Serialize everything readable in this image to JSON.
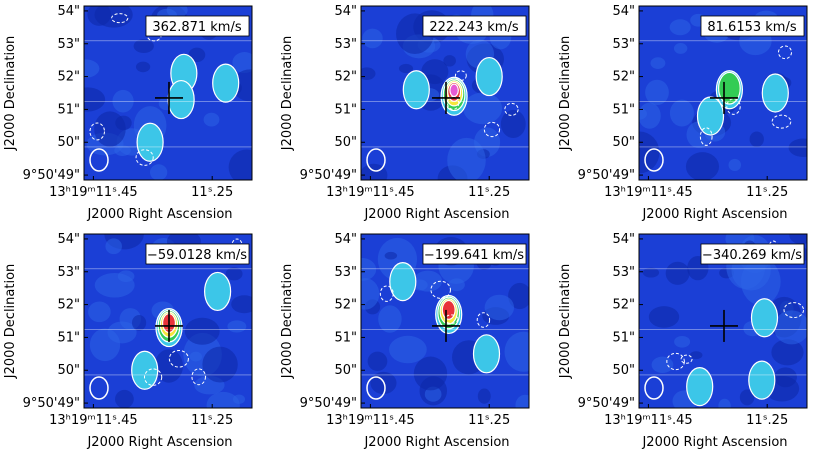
{
  "colors": {
    "background_field": "#1b3fd6",
    "cyan": "#3cc6e8",
    "green": "#33cc55",
    "yellow": "#f5e63c",
    "red": "#e8333a",
    "magenta": "#e65bd4",
    "contour": "#ffffff",
    "marker": "#000000"
  },
  "chart_data": [
    {
      "type": "heatmap",
      "velocity_label": "362.871 km/s",
      "xlabel": "J2000 Right Ascension",
      "ylabel": "J2000 Declination",
      "x_ticks": [
        "13ʰ19ᵐ11ˢ.45",
        "11ˢ.25"
      ],
      "y_ticks": [
        "54\"",
        "53\"",
        "52\"",
        "51\"",
        "50\"",
        "9°50'49\""
      ],
      "peak_level": "low",
      "blobs": [
        {
          "ra_offset": 0.55,
          "dec": 52.1,
          "level": 1
        },
        {
          "ra_offset": 0.45,
          "dec": 51.3,
          "level": 1
        },
        {
          "ra_offset": -0.7,
          "dec": 50.0,
          "level": 1
        },
        {
          "ra_offset": 2.1,
          "dec": 51.8,
          "level": 1
        }
      ]
    },
    {
      "type": "heatmap",
      "velocity_label": "222.243 km/s",
      "xlabel": "J2000 Right Ascension",
      "ylabel": "J2000 Declination",
      "x_ticks": [
        "13ʰ19ᵐ11ˢ.45",
        "11ˢ.25"
      ],
      "y_ticks": [
        "54\"",
        "53\"",
        "52\"",
        "51\"",
        "50\"",
        "9°50'49\""
      ],
      "peak_level": "magenta",
      "blobs": [
        {
          "ra_offset": 0.3,
          "dec": 51.4,
          "level": 5
        },
        {
          "ra_offset": -1.1,
          "dec": 51.6,
          "level": 1
        },
        {
          "ra_offset": 1.6,
          "dec": 52.0,
          "level": 1
        }
      ]
    },
    {
      "type": "heatmap",
      "velocity_label": "81.6153 km/s",
      "xlabel": "J2000 Right Ascension",
      "ylabel": "J2000 Declination",
      "x_ticks": [
        "13ʰ19ᵐ11ˢ.45",
        "11ˢ.25"
      ],
      "y_ticks": [
        "54\"",
        "53\"",
        "52\"",
        "51\"",
        "50\"",
        "9°50'49\""
      ],
      "peak_level": "green",
      "blobs": [
        {
          "ra_offset": 0.2,
          "dec": 51.6,
          "level": 2
        },
        {
          "ra_offset": -0.5,
          "dec": 50.8,
          "level": 1
        },
        {
          "ra_offset": 1.9,
          "dec": 51.5,
          "level": 1
        }
      ]
    },
    {
      "type": "heatmap",
      "velocity_label": "−59.0128 km/s",
      "xlabel": "J2000 Right Ascension",
      "ylabel": "J2000 Declination",
      "x_ticks": [
        "13ʰ19ᵐ11ˢ.45",
        "11ˢ.25"
      ],
      "y_ticks": [
        "54\"",
        "53\"",
        "52\"",
        "51\"",
        "50\"",
        "9°50'49\""
      ],
      "peak_level": "red",
      "blobs": [
        {
          "ra_offset": 0.0,
          "dec": 51.3,
          "level": 4
        },
        {
          "ra_offset": -0.9,
          "dec": 50.0,
          "level": 1
        },
        {
          "ra_offset": 1.8,
          "dec": 52.4,
          "level": 1
        }
      ]
    },
    {
      "type": "heatmap",
      "velocity_label": "−199.641 km/s",
      "xlabel": "J2000 Right Ascension",
      "ylabel": "J2000 Declination",
      "x_ticks": [
        "13ʰ19ᵐ11ˢ.45",
        "11ˢ.25"
      ],
      "y_ticks": [
        "54\"",
        "53\"",
        "52\"",
        "51\"",
        "50\"",
        "9°50'49\""
      ],
      "peak_level": "red",
      "blobs": [
        {
          "ra_offset": 0.1,
          "dec": 51.7,
          "level": 4
        },
        {
          "ra_offset": 1.5,
          "dec": 50.5,
          "level": 1
        },
        {
          "ra_offset": -1.6,
          "dec": 52.7,
          "level": 1
        }
      ]
    },
    {
      "type": "heatmap",
      "velocity_label": "−340.269 km/s",
      "xlabel": "J2000 Right Ascension",
      "ylabel": "J2000 Declination",
      "x_ticks": [
        "13ʰ19ᵐ11ˢ.45",
        "11ˢ.25"
      ],
      "y_ticks": [
        "54\"",
        "53\"",
        "52\"",
        "51\"",
        "50\"",
        "9°50'49\""
      ],
      "peak_level": "low",
      "blobs": [
        {
          "ra_offset": -0.9,
          "dec": 49.5,
          "level": 1
        },
        {
          "ra_offset": 1.4,
          "dec": 49.7,
          "level": 1
        },
        {
          "ra_offset": 1.5,
          "dec": 51.6,
          "level": 1
        }
      ]
    }
  ]
}
